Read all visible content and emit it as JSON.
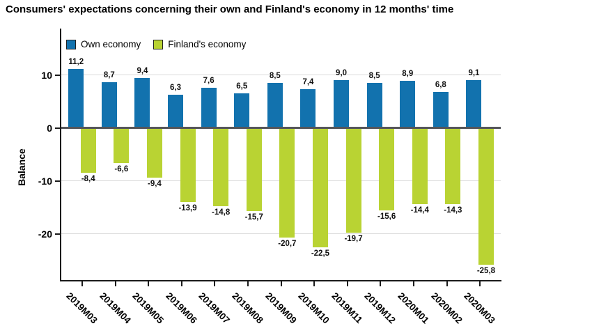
{
  "title": "Consumers' expectations concerning their own and Finland's economy in 12 months' time",
  "legend": {
    "items": [
      {
        "label": "Own economy",
        "color": "#1272ae"
      },
      {
        "label": "Finland's economy",
        "color": "#b9d333"
      }
    ]
  },
  "y_axis": {
    "title": "Balance",
    "tick_labels": [
      "10",
      "0",
      "-10",
      "-20"
    ],
    "tick_values": [
      10,
      0,
      -10,
      -20
    ]
  },
  "colors": {
    "own_economy": "#1272ae",
    "finlands_economy": "#b9d333",
    "zero_line": "#55565a",
    "axis": "#1a1a1a",
    "grid": "#d9d9d9",
    "label_text": "#111111"
  },
  "chart_data": {
    "type": "bar",
    "title": "Consumers' expectations concerning their own and Finland's economy in 12 months' time",
    "xlabel": "",
    "ylabel": "Balance",
    "categories": [
      "2019M03",
      "2019M04",
      "2019M05",
      "2019M06",
      "2019M07",
      "2019M08",
      "2019M09",
      "2019M10",
      "2019M11",
      "2019M12",
      "2020M01",
      "2020M02",
      "2020M03"
    ],
    "series": [
      {
        "name": "Own economy",
        "color": "#1272ae",
        "values": [
          11.2,
          8.7,
          9.4,
          6.3,
          7.6,
          6.5,
          8.5,
          7.4,
          9.0,
          8.5,
          8.9,
          6.8,
          9.1
        ],
        "value_labels": [
          "11,2",
          "8,7",
          "9,4",
          "6,3",
          "7,6",
          "6,5",
          "8,5",
          "7,4",
          "9,0",
          "8,5",
          "8,9",
          "6,8",
          "9,1"
        ]
      },
      {
        "name": "Finland's economy",
        "color": "#b9d333",
        "values": [
          -8.4,
          -6.6,
          -9.4,
          -13.9,
          -14.8,
          -15.7,
          -20.7,
          -22.5,
          -19.7,
          -15.6,
          -14.4,
          -14.3,
          -25.8
        ],
        "value_labels": [
          "-8,4",
          "-6,6",
          "-9,4",
          "-13,9",
          "-14,8",
          "-15,7",
          "-20,7",
          "-22,5",
          "-19,7",
          "-15,6",
          "-14,4",
          "-14,3",
          "-25,8"
        ]
      }
    ],
    "yticks": [
      10,
      0,
      -10,
      -20
    ],
    "ylim": [
      -28.7,
      18.8
    ],
    "grid": true,
    "legend_position": "top-left-inside",
    "decimal_separator": ","
  }
}
